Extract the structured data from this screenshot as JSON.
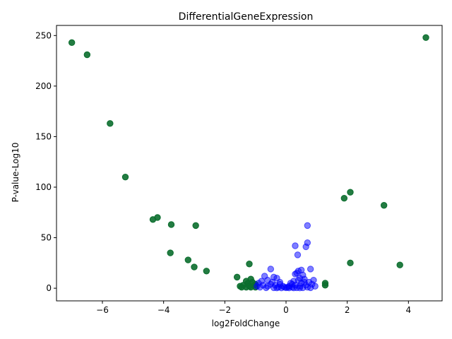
{
  "chart_data": {
    "type": "scatter",
    "title": "DifferentialGeneExpression",
    "xlabel": "log2FoldChange",
    "ylabel": "P-value-Log10",
    "xlim": [
      -7.5,
      5.1
    ],
    "ylim": [
      -12.5,
      260
    ],
    "xticks": [
      -6,
      -4,
      -2,
      0,
      2,
      4
    ],
    "yticks": [
      0,
      50,
      100,
      150,
      200,
      250
    ],
    "grid": false,
    "colors": {
      "significant": "#0b6e2e",
      "nonsignificant": "#2626ff"
    },
    "series": [
      {
        "color": "#0b6e2e",
        "opacity": 0.9,
        "points": [
          [
            -7.0,
            243
          ],
          [
            -6.5,
            231
          ],
          [
            -5.75,
            163
          ],
          [
            -5.25,
            110
          ],
          [
            -4.35,
            68
          ],
          [
            -4.2,
            70
          ],
          [
            -3.75,
            63
          ],
          [
            -3.78,
            35
          ],
          [
            -3.2,
            28
          ],
          [
            -3.0,
            21
          ],
          [
            -2.95,
            62
          ],
          [
            -2.6,
            17
          ],
          [
            -1.6,
            11
          ],
          [
            -1.2,
            24
          ],
          [
            -1.15,
            9
          ],
          [
            -1.5,
            2
          ],
          [
            -1.4,
            3
          ],
          [
            -1.3,
            1
          ],
          [
            -1.25,
            5
          ],
          [
            -1.2,
            2
          ],
          [
            -1.1,
            6
          ],
          [
            -1.05,
            3
          ],
          [
            -1.0,
            4
          ],
          [
            -1.3,
            7
          ],
          [
            -1.15,
            1
          ],
          [
            -1.0,
            1
          ],
          [
            -1.45,
            1
          ],
          [
            1.28,
            5
          ],
          [
            1.28,
            3
          ],
          [
            1.9,
            89
          ],
          [
            2.1,
            95
          ],
          [
            2.1,
            25
          ],
          [
            3.2,
            82
          ],
          [
            3.72,
            23
          ],
          [
            4.57,
            248
          ]
        ]
      },
      {
        "color": "#0000ff",
        "opacity": 0.5,
        "points": [
          [
            0.3,
            42
          ],
          [
            0.65,
            41
          ],
          [
            0.7,
            45
          ],
          [
            0.7,
            62
          ],
          [
            0.38,
            33
          ],
          [
            -0.5,
            19
          ],
          [
            0.8,
            19
          ],
          [
            0.5,
            18
          ],
          [
            0.4,
            17
          ],
          [
            0.35,
            15
          ],
          [
            0.3,
            14
          ],
          [
            0.55,
            13
          ],
          [
            -0.7,
            12
          ],
          [
            -0.4,
            11
          ],
          [
            -0.3,
            10
          ],
          [
            0.45,
            10
          ],
          [
            0.6,
            9
          ],
          [
            -0.6,
            8
          ],
          [
            0.9,
            8
          ],
          [
            0.25,
            7
          ],
          [
            -0.8,
            7
          ],
          [
            0.75,
            6
          ],
          [
            -0.2,
            6
          ],
          [
            0.15,
            5
          ],
          [
            -0.9,
            5
          ],
          [
            0.5,
            5
          ],
          [
            -0.5,
            4
          ],
          [
            0.85,
            4
          ],
          [
            -0.35,
            3
          ],
          [
            0.3,
            3
          ],
          [
            0.65,
            3
          ],
          [
            -0.75,
            3
          ],
          [
            -0.1,
            2
          ],
          [
            0.1,
            2
          ],
          [
            -0.6,
            2
          ],
          [
            0.45,
            2
          ],
          [
            -0.25,
            1
          ],
          [
            0.2,
            1
          ],
          [
            0.7,
            1
          ],
          [
            -0.85,
            1
          ],
          [
            0.0,
            0.5
          ],
          [
            0.05,
            1
          ],
          [
            -0.05,
            1
          ],
          [
            0.35,
            0.5
          ],
          [
            -0.4,
            0.5
          ],
          [
            0.55,
            0.5
          ],
          [
            -0.65,
            0.5
          ],
          [
            0.8,
            0.5
          ],
          [
            0.95,
            2
          ],
          [
            -0.95,
            2
          ],
          [
            0.6,
            6
          ],
          [
            -0.45,
            6
          ],
          [
            0.4,
            8
          ],
          [
            -0.2,
            4
          ],
          [
            0.2,
            4
          ],
          [
            0.1,
            0.3
          ],
          [
            -0.15,
            0.3
          ],
          [
            0.25,
            0.3
          ],
          [
            -0.3,
            0.3
          ],
          [
            0.45,
            0.3
          ]
        ]
      }
    ]
  }
}
